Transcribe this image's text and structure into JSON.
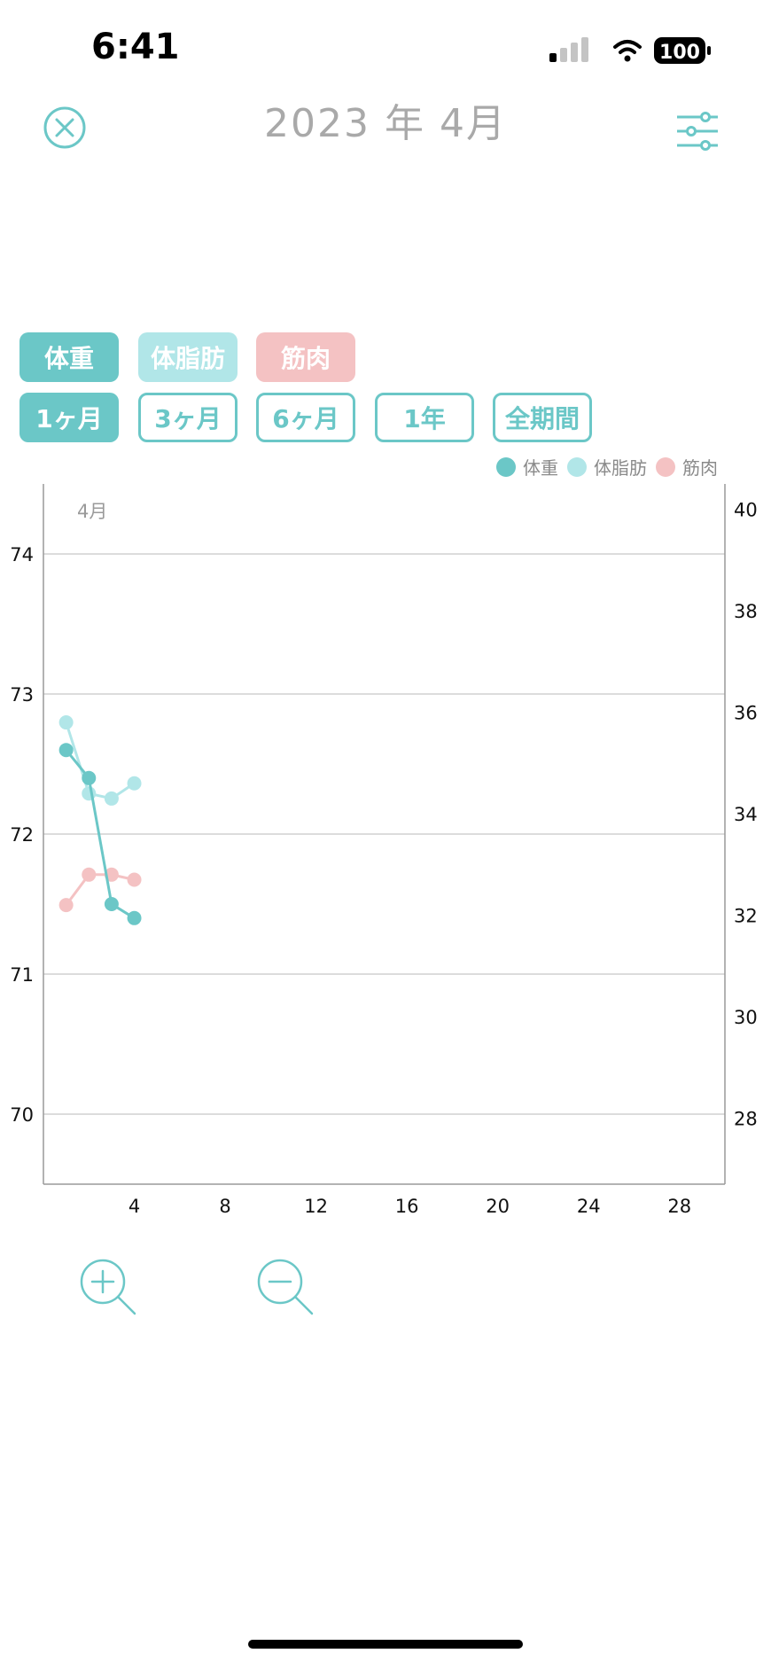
{
  "status": {
    "time": "6:41",
    "battery": "100"
  },
  "header": {
    "title": "2023 年 4月"
  },
  "metrics": [
    {
      "label": "体重",
      "color": "#6bc7c7"
    },
    {
      "label": "体脂肪",
      "color": "#b1e6e8"
    },
    {
      "label": "筋肉",
      "color": "#f4c2c3"
    }
  ],
  "periods": [
    "1ヶ月",
    "3ヶ月",
    "6ヶ月",
    "1年",
    "全期間"
  ],
  "active_period": "1ヶ月",
  "chart_data": {
    "type": "line",
    "month_label": "4月",
    "xlim": [
      0,
      30
    ],
    "x_ticks": [
      4,
      8,
      12,
      16,
      20,
      24,
      28
    ],
    "left_axis": {
      "ticks": [
        70,
        71,
        72,
        73,
        74
      ],
      "range": [
        69.5,
        74.5
      ]
    },
    "right_axis": {
      "ticks": [
        28,
        30,
        32,
        34,
        36,
        38,
        40
      ],
      "range": [
        26.7,
        40.5
      ]
    },
    "grid": true,
    "legend_position": "top-right",
    "series": [
      {
        "name": "体重",
        "axis": "left",
        "color": "#6bc7c7",
        "x": [
          1,
          2,
          3,
          4
        ],
        "y": [
          72.6,
          72.4,
          71.5,
          71.4
        ]
      },
      {
        "name": "体脂肪",
        "axis": "right",
        "color": "#b1e6e8",
        "x": [
          1,
          2,
          3,
          4
        ],
        "y": [
          35.8,
          34.4,
          34.3,
          34.6
        ]
      },
      {
        "name": "筋肉",
        "axis": "right",
        "color": "#f4c2c3",
        "x": [
          1,
          2,
          3,
          4
        ],
        "y": [
          32.2,
          32.8,
          32.8,
          32.7
        ]
      }
    ]
  }
}
